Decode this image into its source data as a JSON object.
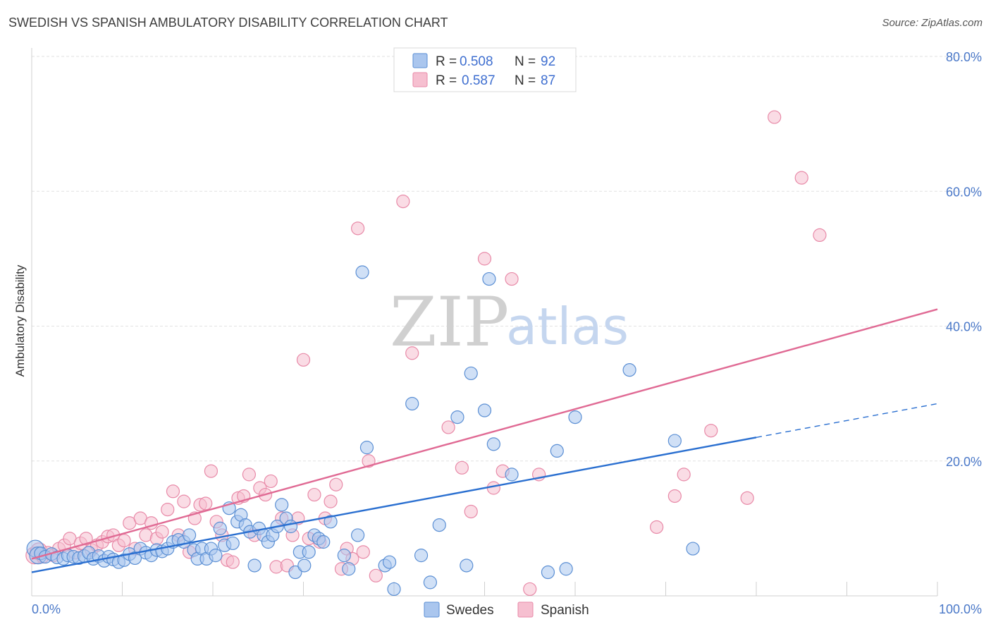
{
  "header": {
    "title": "SWEDISH VS SPANISH AMBULATORY DISABILITY CORRELATION CHART",
    "source": "Source: ZipAtlas.com"
  },
  "watermark": {
    "part1": "ZIP",
    "part2": "atlas"
  },
  "legend_top": {
    "rows": [
      {
        "r_label": "R =",
        "r_value": "0.508",
        "n_label": "N =",
        "n_value": "92"
      },
      {
        "r_label": "R =",
        "r_value": "0.587",
        "n_label": "N =",
        "n_value": "87"
      }
    ]
  },
  "legend_bottom": {
    "items": [
      "Swedes",
      "Spanish"
    ]
  },
  "colors": {
    "swedes_fill": "#aac6ee",
    "swedes_stroke": "#5b8fd4",
    "swedes_line": "#2a6fd0",
    "spanish_fill": "#f6bfd0",
    "spanish_stroke": "#e88aa8",
    "spanish_line": "#e06a94",
    "tick": "#4a78c8",
    "grid": "#e2e2e2"
  },
  "chart_data": {
    "type": "scatter",
    "title": "SWEDISH VS SPANISH AMBULATORY DISABILITY CORRELATION CHART",
    "xlabel": "",
    "ylabel": "Ambulatory Disability",
    "xlim": [
      0,
      100
    ],
    "ylim": [
      0,
      80
    ],
    "x_tick_labels": [
      "0.0%",
      "100.0%"
    ],
    "y_ticks": [
      20,
      40,
      60,
      80
    ],
    "y_tick_labels": [
      "20.0%",
      "40.0%",
      "60.0%",
      "80.0%"
    ],
    "grid": true,
    "legend_position": "top-center",
    "series": [
      {
        "name": "Swedes",
        "r": 0.508,
        "n": 92,
        "trend": {
          "x": [
            0,
            80
          ],
          "y": [
            3.5,
            23.5
          ],
          "dashed_extension_to": [
            100,
            28.5
          ]
        },
        "points": [
          [
            0.4,
            7.0
          ],
          [
            0.7,
            6.0
          ],
          [
            1.0,
            6.3
          ],
          [
            1.5,
            5.8
          ],
          [
            2.2,
            6.2
          ],
          [
            2.8,
            5.7
          ],
          [
            3.5,
            5.5
          ],
          [
            4.0,
            6.0
          ],
          [
            4.6,
            5.8
          ],
          [
            5.2,
            5.6
          ],
          [
            5.8,
            5.9
          ],
          [
            6.3,
            6.4
          ],
          [
            6.8,
            5.5
          ],
          [
            7.4,
            5.9
          ],
          [
            8.0,
            5.2
          ],
          [
            8.5,
            5.8
          ],
          [
            9.0,
            5.4
          ],
          [
            9.6,
            5.0
          ],
          [
            10.2,
            5.3
          ],
          [
            10.8,
            6.2
          ],
          [
            11.4,
            5.6
          ],
          [
            12.0,
            7.0
          ],
          [
            12.6,
            6.4
          ],
          [
            13.2,
            6.0
          ],
          [
            13.8,
            6.8
          ],
          [
            14.4,
            6.6
          ],
          [
            15.0,
            7.0
          ],
          [
            15.6,
            8.0
          ],
          [
            16.2,
            8.3
          ],
          [
            16.8,
            8.0
          ],
          [
            17.4,
            9.0
          ],
          [
            17.9,
            6.8
          ],
          [
            18.3,
            5.5
          ],
          [
            18.8,
            7.0
          ],
          [
            19.3,
            5.5
          ],
          [
            19.8,
            7.0
          ],
          [
            20.3,
            6.0
          ],
          [
            20.8,
            10.0
          ],
          [
            21.3,
            7.5
          ],
          [
            21.8,
            13.0
          ],
          [
            22.2,
            7.8
          ],
          [
            22.7,
            11.0
          ],
          [
            23.1,
            12.0
          ],
          [
            23.6,
            10.5
          ],
          [
            24.1,
            9.5
          ],
          [
            24.6,
            4.5
          ],
          [
            25.1,
            10.0
          ],
          [
            25.6,
            9.0
          ],
          [
            26.1,
            8.0
          ],
          [
            26.6,
            9.0
          ],
          [
            27.1,
            10.3
          ],
          [
            27.6,
            13.5
          ],
          [
            28.1,
            11.5
          ],
          [
            28.6,
            10.3
          ],
          [
            29.1,
            3.5
          ],
          [
            29.6,
            6.5
          ],
          [
            30.1,
            4.5
          ],
          [
            30.6,
            6.5
          ],
          [
            31.2,
            9.0
          ],
          [
            31.7,
            8.5
          ],
          [
            32.2,
            8.0
          ],
          [
            33.0,
            11.0
          ],
          [
            34.5,
            6.0
          ],
          [
            35.0,
            4.0
          ],
          [
            36.0,
            9.0
          ],
          [
            37.0,
            22.0
          ],
          [
            36.5,
            48.0
          ],
          [
            39.0,
            4.5
          ],
          [
            39.5,
            5.0
          ],
          [
            40.0,
            1.0
          ],
          [
            42.0,
            28.5
          ],
          [
            43.0,
            6.0
          ],
          [
            44.0,
            2.0
          ],
          [
            45.0,
            10.5
          ],
          [
            47.0,
            26.5
          ],
          [
            48.0,
            4.5
          ],
          [
            48.5,
            33.0
          ],
          [
            50.0,
            27.5
          ],
          [
            50.5,
            47.0
          ],
          [
            51.0,
            22.5
          ],
          [
            53.0,
            18.0
          ],
          [
            57.0,
            3.5
          ],
          [
            58.0,
            21.5
          ],
          [
            59.0,
            4.0
          ],
          [
            60.0,
            26.5
          ],
          [
            66.0,
            33.5
          ],
          [
            71.0,
            23.0
          ],
          [
            73.0,
            7.0
          ]
        ]
      },
      {
        "name": "Spanish",
        "r": 0.587,
        "n": 87,
        "trend": {
          "x": [
            0,
            100
          ],
          "y": [
            5.5,
            42.5
          ]
        },
        "points": [
          [
            0.3,
            6.0
          ],
          [
            0.8,
            6.6
          ],
          [
            1.2,
            5.8
          ],
          [
            1.8,
            6.4
          ],
          [
            2.4,
            6.0
          ],
          [
            3.0,
            7.0
          ],
          [
            3.6,
            7.5
          ],
          [
            4.2,
            8.5
          ],
          [
            4.8,
            6.4
          ],
          [
            5.4,
            7.8
          ],
          [
            6.0,
            8.5
          ],
          [
            6.6,
            6.8
          ],
          [
            7.2,
            7.5
          ],
          [
            7.8,
            8.0
          ],
          [
            8.4,
            8.8
          ],
          [
            9.0,
            9.0
          ],
          [
            9.6,
            7.5
          ],
          [
            10.2,
            8.2
          ],
          [
            10.8,
            10.8
          ],
          [
            11.4,
            7.0
          ],
          [
            12.0,
            11.5
          ],
          [
            12.6,
            9.0
          ],
          [
            13.2,
            10.8
          ],
          [
            13.8,
            8.5
          ],
          [
            14.4,
            9.5
          ],
          [
            15.0,
            12.8
          ],
          [
            15.6,
            15.5
          ],
          [
            16.2,
            9.0
          ],
          [
            16.8,
            14.0
          ],
          [
            17.4,
            6.5
          ],
          [
            18.0,
            11.5
          ],
          [
            18.6,
            13.5
          ],
          [
            19.2,
            13.7
          ],
          [
            19.8,
            18.5
          ],
          [
            20.4,
            11.0
          ],
          [
            21.0,
            9.0
          ],
          [
            21.6,
            5.3
          ],
          [
            22.2,
            5.0
          ],
          [
            22.8,
            14.5
          ],
          [
            23.4,
            14.8
          ],
          [
            24.0,
            18.0
          ],
          [
            24.6,
            9.0
          ],
          [
            25.2,
            16.0
          ],
          [
            25.8,
            15.0
          ],
          [
            26.4,
            17.0
          ],
          [
            27.0,
            4.3
          ],
          [
            27.6,
            11.5
          ],
          [
            28.2,
            4.5
          ],
          [
            28.8,
            9.0
          ],
          [
            29.4,
            11.5
          ],
          [
            30.0,
            35.0
          ],
          [
            30.6,
            8.5
          ],
          [
            31.2,
            15.0
          ],
          [
            31.8,
            8.0
          ],
          [
            32.4,
            11.5
          ],
          [
            33.0,
            14.0
          ],
          [
            33.6,
            16.5
          ],
          [
            34.2,
            4.0
          ],
          [
            34.8,
            7.0
          ],
          [
            35.4,
            5.5
          ],
          [
            36.0,
            54.5
          ],
          [
            36.6,
            6.5
          ],
          [
            37.2,
            20.0
          ],
          [
            38.0,
            3.0
          ],
          [
            41.0,
            58.5
          ],
          [
            42.0,
            36.0
          ],
          [
            46.0,
            25.0
          ],
          [
            47.5,
            19.0
          ],
          [
            48.5,
            12.5
          ],
          [
            50.0,
            50.0
          ],
          [
            51.0,
            16.0
          ],
          [
            52.0,
            18.5
          ],
          [
            53.0,
            47.0
          ],
          [
            55.0,
            1.0
          ],
          [
            56.0,
            18.0
          ],
          [
            69.0,
            10.2
          ],
          [
            71.0,
            14.8
          ],
          [
            72.0,
            18.0
          ],
          [
            75.0,
            24.5
          ],
          [
            79.0,
            14.5
          ],
          [
            82.0,
            71.0
          ],
          [
            85.0,
            62.0
          ],
          [
            87.0,
            53.5
          ]
        ]
      }
    ]
  }
}
